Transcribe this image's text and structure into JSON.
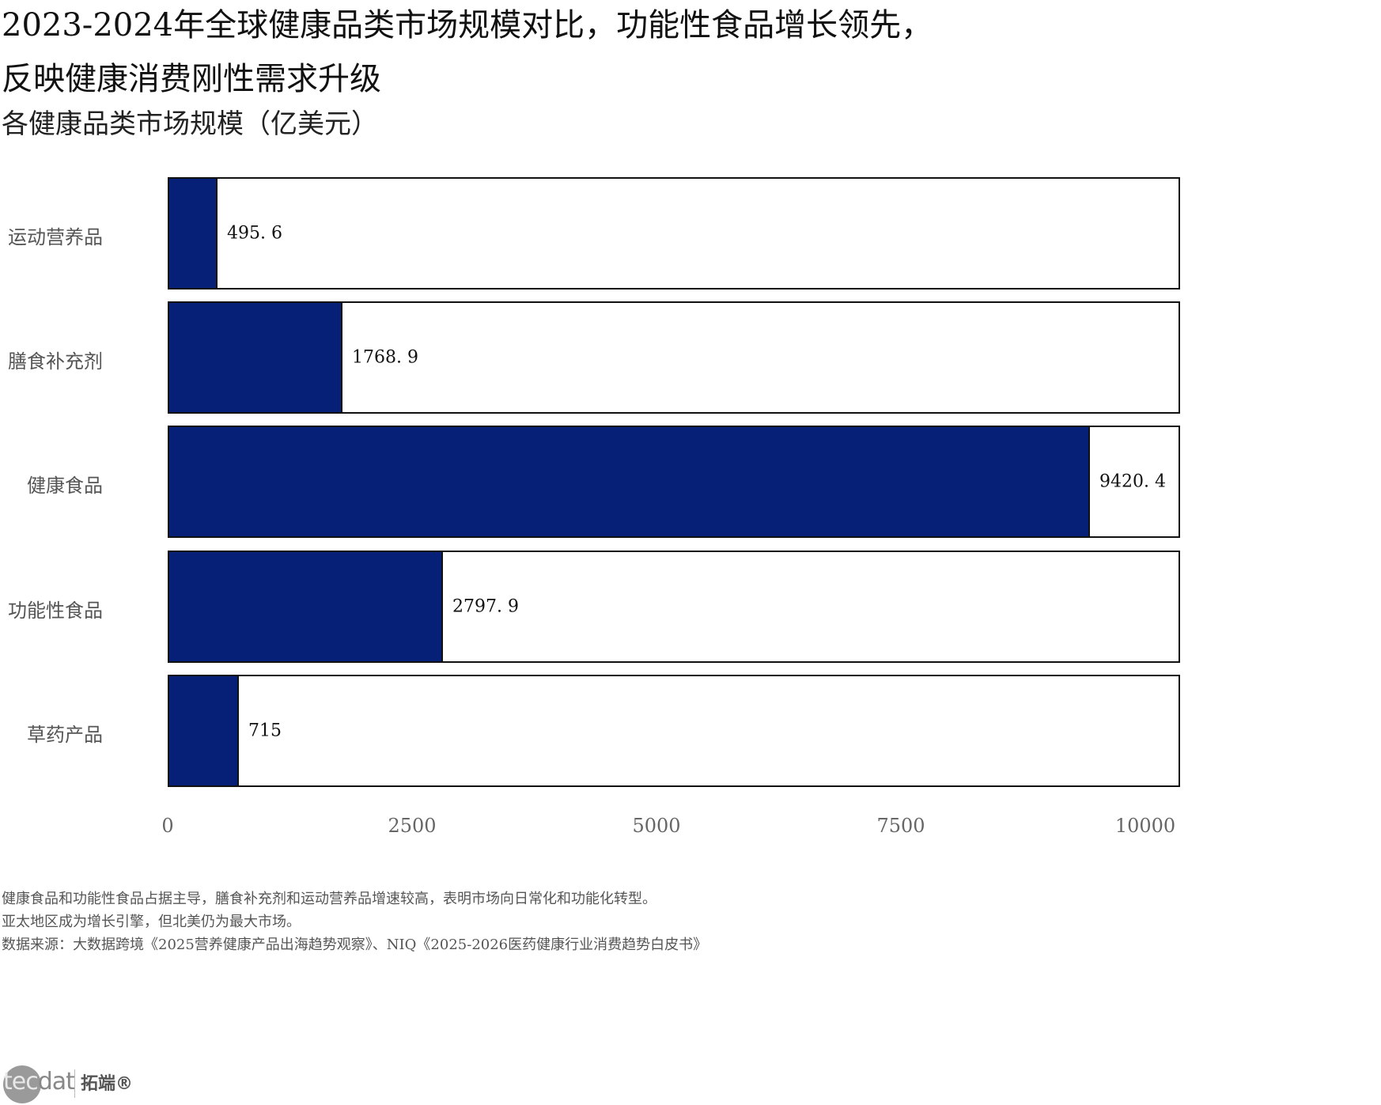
{
  "title": {
    "line1": "2023-2024年全球健康品类市场规模对比，功能性食品增长领先，",
    "line2": "反映健康消费刚性需求升级"
  },
  "subtitle": "各健康品类市场规模（亿美元）",
  "colors": {
    "bar": "#061f77",
    "border": "#111111",
    "track": "#ffffff"
  },
  "chart_data": {
    "type": "bar",
    "orientation": "horizontal",
    "title": "2023-2024年全球健康品类市场规模对比，功能性食品增长领先，反映健康消费刚性需求升级",
    "subtitle": "各健康品类市场规模（亿美元）",
    "categories": [
      "运动营养品",
      "膳食补充剂",
      "健康食品",
      "功能性食品",
      "草药产品"
    ],
    "values": [
      495.6,
      1768.9,
      9420.4,
      2797.9,
      715
    ],
    "value_labels": [
      "495. 6",
      "1768. 9",
      "9420. 4",
      "2797. 9",
      "715"
    ],
    "xlabel": "",
    "ylabel": "",
    "xlim": [
      0,
      10356
    ],
    "xticks": [
      "0",
      "2500",
      "5000",
      "7500",
      "10000"
    ],
    "grid": false,
    "legend": null
  },
  "footer": {
    "note1": "健康食品和功能性食品占据主导，膳食补充剂和运动营养品增速较高，表明市场向日常化和功能化转型。",
    "note2": "亚太地区成为增长引擎，但北美仍为最大市场。",
    "source": "数据来源：大数据跨境《2025营养健康产品出海趋势观察》、NIQ《2025-2026医药健康行业消费趋势白皮书》"
  },
  "logo": {
    "tec": "tec",
    "dat": "dat",
    "cn": "拓端®"
  }
}
